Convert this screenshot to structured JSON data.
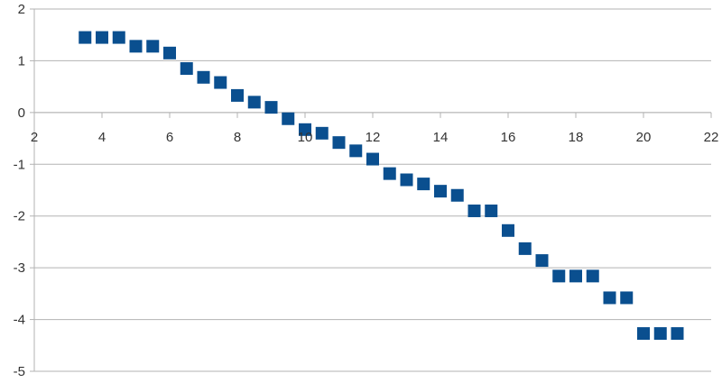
{
  "chart_data": {
    "type": "scatter",
    "title": "",
    "xlabel": "",
    "ylabel": "",
    "xlim": [
      2,
      22
    ],
    "ylim": [
      -5,
      2
    ],
    "x_ticks": [
      2,
      4,
      6,
      8,
      10,
      12,
      14,
      16,
      18,
      20,
      22
    ],
    "y_ticks": [
      2,
      1,
      0,
      -1,
      -2,
      -3,
      -4,
      -5
    ],
    "x_tick_labels": [
      "2",
      "4",
      "6",
      "8",
      "10",
      "12",
      "14",
      "16",
      "18",
      "20",
      "22"
    ],
    "y_tick_labels": [
      "2",
      "1",
      "0",
      "-1",
      "-2",
      "-3",
      "-4",
      "-5"
    ],
    "grid": "horizontal",
    "legend": "none",
    "marker": "square",
    "series": [
      {
        "color": "#0a4f8f",
        "x": [
          3.5,
          4,
          4.5,
          5,
          5.5,
          6,
          6.5,
          7,
          7.5,
          8,
          8.5,
          9,
          9.5,
          10,
          10.5,
          11,
          11.5,
          12,
          12.5,
          13,
          13.5,
          14,
          14.5,
          15,
          15.5,
          16,
          16.5,
          17,
          17.5,
          18,
          18.5,
          19,
          19.5,
          20,
          20.5,
          21
        ],
        "y": [
          1.45,
          1.45,
          1.45,
          1.28,
          1.28,
          1.15,
          0.85,
          0.68,
          0.58,
          0.33,
          0.2,
          0.1,
          -0.12,
          -0.33,
          -0.4,
          -0.58,
          -0.74,
          -0.9,
          -1.18,
          -1.3,
          -1.38,
          -1.52,
          -1.6,
          -1.9,
          -1.9,
          -2.28,
          -2.63,
          -2.86,
          -3.16,
          -3.16,
          -3.16,
          -3.58,
          -3.58,
          -4.27,
          -4.27,
          -4.27
        ]
      }
    ]
  }
}
